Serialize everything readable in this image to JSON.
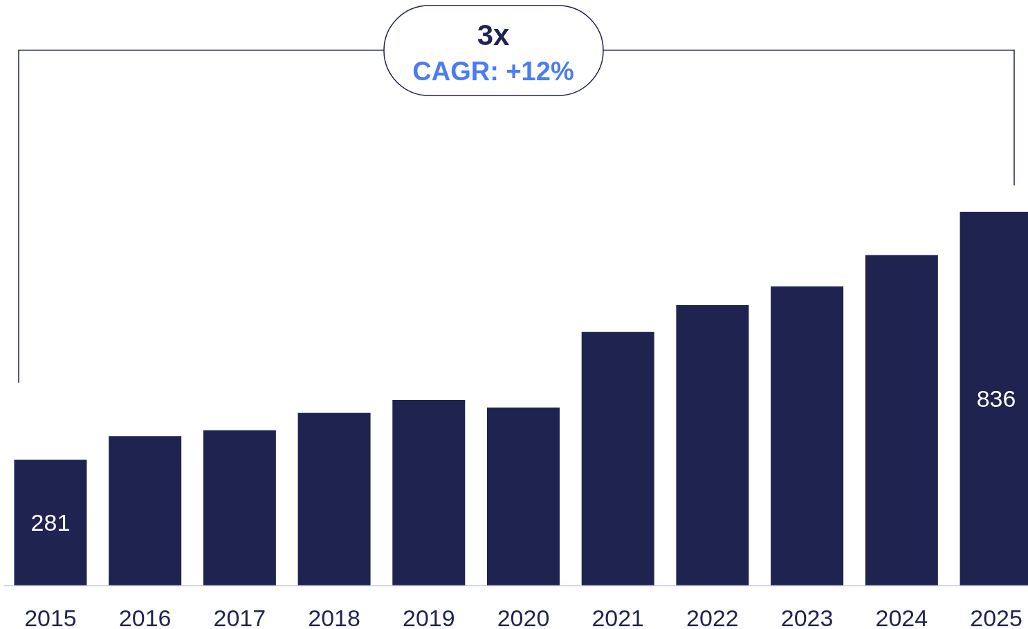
{
  "chart_data": {
    "type": "bar",
    "categories": [
      "2015",
      "2016",
      "2017",
      "2018",
      "2019",
      "2020",
      "2021",
      "2022",
      "2023",
      "2024",
      "2025"
    ],
    "values": [
      281,
      334,
      347,
      386,
      415,
      398,
      567,
      627,
      669,
      739,
      836
    ],
    "value_labels": [
      "281",
      null,
      null,
      null,
      null,
      null,
      null,
      null,
      null,
      null,
      "836"
    ],
    "color": "#1f2350",
    "annotations": [
      "3x",
      "CAGR: +12%"
    ]
  }
}
